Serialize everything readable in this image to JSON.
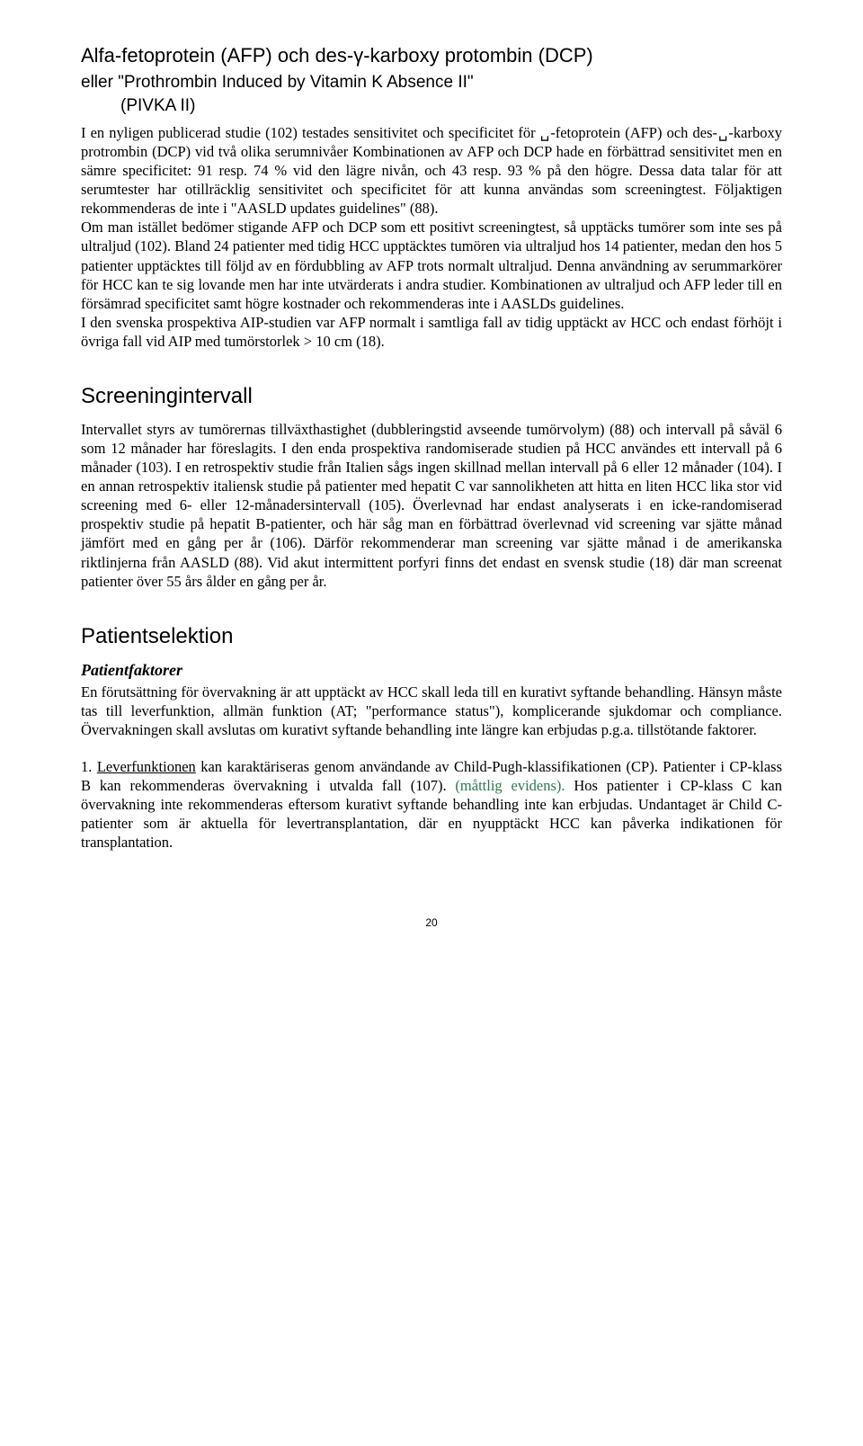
{
  "title_line1": "Alfa-fetoprotein (AFP) och des-γ-karboxy protombin (DCP)",
  "title_line2": "eller \"Prothrombin Induced by Vitamin K Absence II\"",
  "title_line3": "(PIVKA II)",
  "p1": "I en nyligen publicerad studie (102) testades sensitivitet och specificitet för ␣-fetoprotein (AFP) och des-␣-karboxy protrombin (DCP) vid två olika serumnivåer Kombinationen av AFP och DCP hade en förbättrad sensitivitet men en sämre specificitet: 91 resp. 74 % vid den lägre nivån, och 43 resp. 93 % på den högre. Dessa data talar för att serumtester har otillräcklig sensitivitet och specificitet för att kunna användas som screeningtest. Följaktigen rekommenderas de inte i \"AASLD updates guidelines\" (88).",
  "p2": "Om man istället bedömer stigande AFP och DCP som ett positivt screeningtest, så upptäcks tumörer som inte ses på ultraljud (102). Bland 24 patienter med tidig HCC upptäcktes tumören via ultraljud hos 14 patienter, medan den hos 5 patienter upptäcktes till följd av en fördubbling av AFP trots normalt ultraljud. Denna användning av serummarkörer för HCC kan te sig lovande men har inte utvärderats i andra studier. Kombinationen av ultraljud och AFP leder till en försämrad specificitet samt högre kostnader och rekommenderas inte i AASLDs guidelines.",
  "p3": "I den svenska prospektiva AIP-studien var AFP normalt i samtliga fall av tidig upptäckt av HCC och endast förhöjt i övriga fall vid AIP med tumörstorlek > 10 cm (18).",
  "screening_title": "Screeningintervall",
  "p4": "Intervallet styrs av tumörernas tillväxthastighet (dubbleringstid avseende tumörvolym) (88) och intervall på såväl 6 som 12 månader har föreslagits. I den enda prospektiva randomiserade studien på HCC användes ett intervall på 6 månader (103). I en retrospektiv studie från Italien sågs ingen skillnad mellan intervall på 6 eller 12 månader (104). I en annan retrospektiv italiensk studie på patienter med hepatit C var sannolikheten att hitta en liten HCC lika stor vid screening med 6- eller 12-månadersintervall (105). Överlevnad har endast analyserats i en icke-randomiserad prospektiv studie på hepatit B-patienter, och här såg man en förbättrad överlevnad vid screening var sjätte månad jämfört med en gång per år (106). Därför rekommenderar man screening var sjätte månad i de amerikanska riktlinjerna från AASLD (88). Vid akut intermittent porfyri finns det endast en svensk studie (18) där man screenat patienter över 55 års ålder en gång per år.",
  "patsel_title": "Patientselektion",
  "patfaktorer_title": "Patientfaktorer",
  "p5": "En förutsättning för övervakning är att upptäckt av HCC skall leda till en kurativt syftande behandling. Hänsyn måste tas till leverfunktion, allmän funktion (AT; \"performance status\"), komplicerande sjukdomar och compliance. Övervakningen skall avslutas om kurativt syftande behandling inte längre kan erbjudas p.g.a. tillstötande faktorer.",
  "p6_prefix": "1. ",
  "p6_underline": "Leverfunktionen",
  "p6_a": " kan karaktäriseras genom användande av Child-Pugh-klassifikationen (CP). Patienter i CP-klass B kan rekommenderas övervakning i utvalda fall (107). ",
  "p6_evidence": "(måttlig evidens).",
  "p6_b": " Hos patienter i CP-klass C kan övervakning inte rekommenderas eftersom kurativt syftande behandling inte kan erbjudas. Undantaget är Child C-patienter som är aktuella för levertransplantation, där en nyupptäckt HCC kan påverka indikationen för transplantation.",
  "page_number": "20"
}
